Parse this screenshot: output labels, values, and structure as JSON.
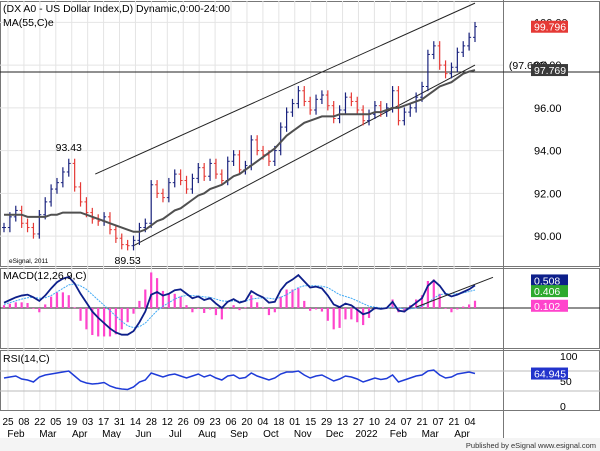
{
  "chart_data": {
    "type": "line",
    "title": "(DX A0 - US Dollar Index,D) Dynamic,0:00-24:00",
    "ma_label": "MA(55,C)e",
    "watermark": "eSignal, 2011",
    "footer": "Published by eSignal    www.esignal.com",
    "colors": {
      "up": "#1a237e",
      "down": "#e53935",
      "ma": "#505050",
      "macd": "#0d1f8a",
      "signal": "#3fa9f5",
      "hist": "#ff44cc",
      "rsi": "#1e3bd8",
      "price_badge": "#e53935",
      "ma_badge": "#3a3a3a",
      "macd_badge": "#0d1f8a",
      "signal_badge": "#2eaa2e",
      "hist_badge": "#ff44cc",
      "rsi_badge": "#2233cc"
    },
    "x_tick_labels": [
      "25",
      "08",
      "22",
      "05",
      "19",
      "03",
      "17",
      "31",
      "14",
      "28",
      "12",
      "26",
      "09",
      "23",
      "06",
      "20",
      "04",
      "18",
      "01",
      "15",
      "29",
      "13",
      "27",
      "10",
      "24",
      "07",
      "21",
      "07",
      "21",
      "04"
    ],
    "month_labels": [
      {
        "label": "Feb",
        "tick": 0
      },
      {
        "label": "Mar",
        "tick": 2
      },
      {
        "label": "Apr",
        "tick": 4
      },
      {
        "label": "May",
        "tick": 6
      },
      {
        "label": "Jun",
        "tick": 8
      },
      {
        "label": "Jul",
        "tick": 10
      },
      {
        "label": "Aug",
        "tick": 12
      },
      {
        "label": "Sep",
        "tick": 14
      },
      {
        "label": "Oct",
        "tick": 16
      },
      {
        "label": "Nov",
        "tick": 18
      },
      {
        "label": "Dec",
        "tick": 20
      },
      {
        "label": "2022",
        "tick": 22
      },
      {
        "label": "Feb",
        "tick": 24
      },
      {
        "label": "Mar",
        "tick": 26
      },
      {
        "label": "Apr",
        "tick": 28
      }
    ],
    "price_panel": {
      "ylim": [
        88.6,
        101.0
      ],
      "yticks": [
        90,
        92,
        94,
        96,
        98,
        100
      ],
      "close": [
        90.4,
        90.9,
        91.2,
        90.6,
        90.4,
        90.1,
        91.0,
        91.6,
        92.2,
        92.5,
        93.0,
        93.4,
        92.3,
        91.6,
        91.1,
        90.8,
        90.7,
        90.9,
        90.3,
        89.9,
        89.6,
        89.55,
        89.8,
        90.4,
        90.6,
        92.4,
        92.0,
        91.8,
        92.5,
        92.9,
        92.6,
        92.2,
        92.7,
        93.2,
        92.8,
        93.4,
        92.9,
        92.6,
        93.5,
        93.8,
        93.1,
        93.3,
        94.5,
        94.0,
        93.8,
        93.5,
        94.0,
        95.1,
        95.8,
        96.2,
        96.8,
        96.3,
        95.9,
        96.4,
        96.6,
        96.1,
        95.5,
        95.9,
        96.5,
        96.3,
        95.9,
        95.4,
        95.7,
        96.1,
        95.8,
        96.0,
        96.8,
        95.4,
        95.8,
        96.0,
        96.5,
        97.0,
        98.5,
        98.9,
        98.0,
        97.6,
        97.9,
        98.6,
        98.9,
        99.3,
        99.8
      ],
      "ma55": [
        91.0,
        91.0,
        91.0,
        91.0,
        90.9,
        90.9,
        90.9,
        90.9,
        91.0,
        91.0,
        91.1,
        91.1,
        91.1,
        91.1,
        91.0,
        90.9,
        90.8,
        90.7,
        90.6,
        90.5,
        90.4,
        90.3,
        90.2,
        90.2,
        90.3,
        90.5,
        90.7,
        90.8,
        91.0,
        91.2,
        91.3,
        91.5,
        91.7,
        91.9,
        92.0,
        92.2,
        92.3,
        92.4,
        92.6,
        92.8,
        92.9,
        93.1,
        93.3,
        93.5,
        93.7,
        93.9,
        94.1,
        94.4,
        94.7,
        94.9,
        95.1,
        95.3,
        95.4,
        95.5,
        95.6,
        95.6,
        95.6,
        95.7,
        95.7,
        95.7,
        95.7,
        95.7,
        95.7,
        95.8,
        95.8,
        95.9,
        96.0,
        96.0,
        96.1,
        96.2,
        96.3,
        96.4,
        96.6,
        96.8,
        97.0,
        97.1,
        97.2,
        97.4,
        97.6,
        97.7,
        97.769
      ],
      "channel_upper": [
        [
          15.5,
          92.9
        ],
        [
          80,
          100.9
        ]
      ],
      "channel_lower": [
        [
          22,
          89.55
        ],
        [
          80,
          98.0
        ]
      ],
      "hline": 97.68,
      "hline_label": "(97.680)",
      "annotations": [
        {
          "text": "93.43",
          "x": 11,
          "y": 93.43,
          "pos": "above"
        },
        {
          "text": "89.53",
          "x": 21,
          "y": 89.53,
          "pos": "below"
        }
      ],
      "last_price": 99.796,
      "last_price_label": "99.796",
      "last_ma": 97.769,
      "last_ma_label": "97.769"
    },
    "macd_panel": {
      "label": "MACD(12,26,9,C)",
      "ylim": [
        -0.9,
        0.9
      ],
      "macd": [
        0.12,
        0.18,
        0.24,
        0.28,
        0.3,
        0.24,
        0.16,
        0.28,
        0.44,
        0.58,
        0.66,
        0.7,
        0.55,
        0.32,
        0.12,
        -0.08,
        -0.22,
        -0.34,
        -0.46,
        -0.55,
        -0.6,
        -0.6,
        -0.52,
        -0.32,
        -0.08,
        0.3,
        0.36,
        0.28,
        0.32,
        0.4,
        0.42,
        0.32,
        0.22,
        0.26,
        0.18,
        0.22,
        0.1,
        0.0,
        0.14,
        0.2,
        0.12,
        0.16,
        0.38,
        0.3,
        0.24,
        0.12,
        0.14,
        0.4,
        0.56,
        0.64,
        0.74,
        0.6,
        0.46,
        0.48,
        0.44,
        0.28,
        0.08,
        0.02,
        0.1,
        0.06,
        -0.04,
        -0.14,
        -0.1,
        0.0,
        -0.02,
        0.0,
        0.14,
        -0.06,
        -0.08,
        0.02,
        0.12,
        0.22,
        0.5,
        0.62,
        0.5,
        0.32,
        0.26,
        0.3,
        0.36,
        0.42,
        0.508
      ],
      "signal": [
        0.08,
        0.12,
        0.16,
        0.2,
        0.23,
        0.24,
        0.22,
        0.23,
        0.28,
        0.36,
        0.44,
        0.52,
        0.54,
        0.5,
        0.42,
        0.3,
        0.18,
        0.06,
        -0.06,
        -0.18,
        -0.3,
        -0.4,
        -0.44,
        -0.42,
        -0.34,
        -0.2,
        -0.06,
        0.04,
        0.12,
        0.2,
        0.26,
        0.28,
        0.28,
        0.27,
        0.25,
        0.24,
        0.2,
        0.16,
        0.15,
        0.16,
        0.15,
        0.15,
        0.2,
        0.22,
        0.23,
        0.22,
        0.2,
        0.24,
        0.3,
        0.38,
        0.46,
        0.5,
        0.5,
        0.5,
        0.49,
        0.46,
        0.38,
        0.3,
        0.26,
        0.22,
        0.16,
        0.1,
        0.04,
        0.02,
        0.0,
        0.0,
        0.02,
        0.0,
        -0.02,
        -0.02,
        0.0,
        0.04,
        0.12,
        0.22,
        0.3,
        0.32,
        0.32,
        0.32,
        0.34,
        0.37,
        0.406
      ],
      "hist_label": "0.102",
      "macd_label": "0.508",
      "signal_label": "0.406",
      "trendline": [
        [
          70,
          0.02
        ],
        [
          80,
          0.6
        ]
      ]
    },
    "rsi_panel": {
      "label": "RSI(14,C)",
      "ylim": [
        0,
        100
      ],
      "yticks": [
        0,
        50,
        100
      ],
      "upper": 70,
      "lower": 30,
      "values": [
        56,
        58,
        60,
        54,
        52,
        48,
        58,
        62,
        64,
        66,
        68,
        70,
        60,
        50,
        46,
        44,
        45,
        47,
        40,
        36,
        34,
        33,
        38,
        48,
        52,
        66,
        62,
        58,
        62,
        64,
        60,
        56,
        60,
        64,
        58,
        62,
        56,
        52,
        60,
        62,
        55,
        57,
        66,
        60,
        56,
        52,
        56,
        64,
        68,
        68,
        70,
        62,
        56,
        60,
        62,
        56,
        50,
        54,
        60,
        58,
        54,
        48,
        52,
        56,
        53,
        55,
        62,
        48,
        52,
        56,
        60,
        62,
        70,
        72,
        62,
        56,
        58,
        64,
        66,
        68,
        64.945
      ],
      "last_label": "64.945"
    }
  }
}
